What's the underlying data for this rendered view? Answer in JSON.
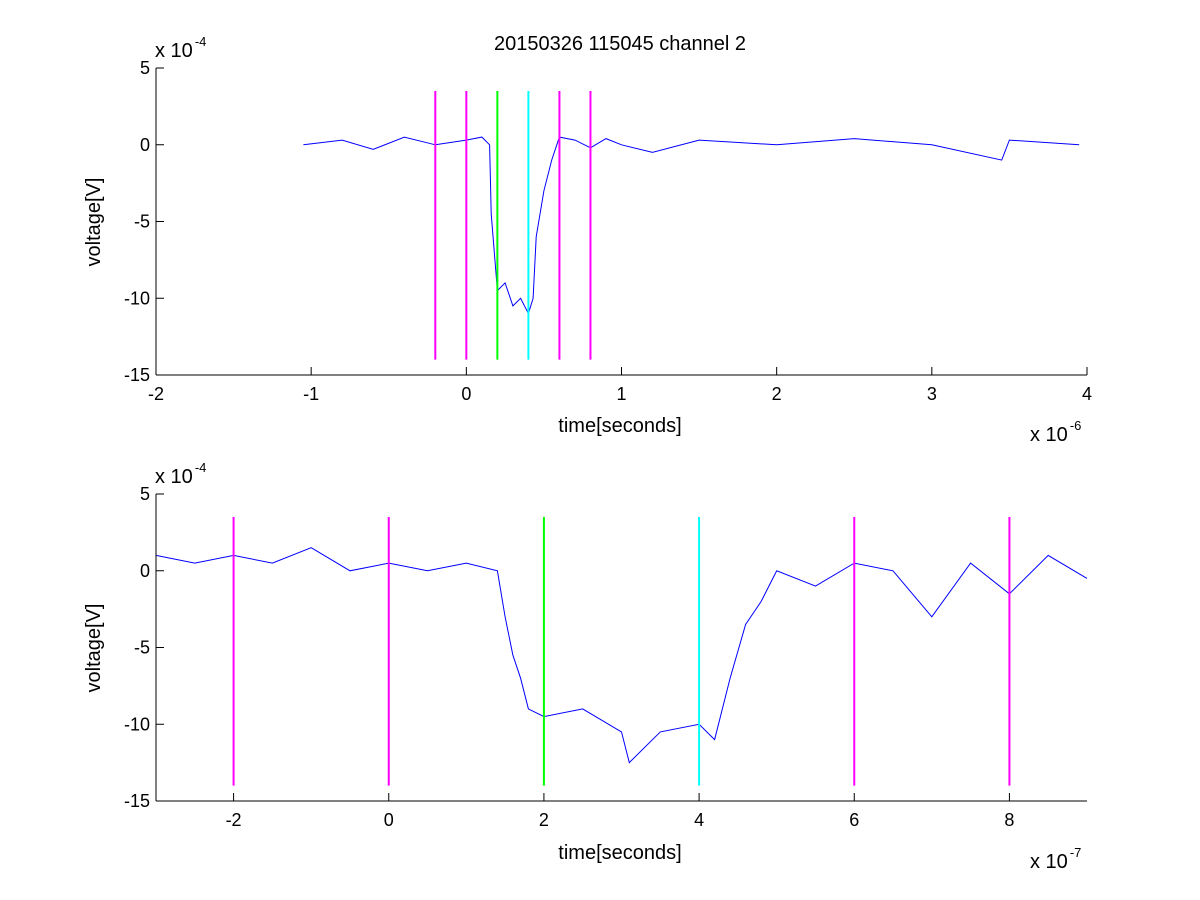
{
  "chart_data": [
    {
      "type": "line",
      "title": "20150326 115045 channel 2",
      "xlabel": "time[seconds]",
      "ylabel": "voltage[V]",
      "x_multiplier": {
        "base": "x 10",
        "exp": "-6"
      },
      "y_multiplier": {
        "base": "x 10",
        "exp": "-4"
      },
      "xlim": [
        -2,
        4
      ],
      "ylim": [
        -15,
        5
      ],
      "x_ticks": [
        "-2",
        "-1",
        "0",
        "1",
        "2",
        "3",
        "4"
      ],
      "y_ticks": [
        "5",
        "0",
        "-5",
        "-10",
        "-15"
      ],
      "grid": false,
      "series": [
        {
          "color": "#0000ff",
          "x": [
            -1.05,
            -0.8,
            -0.6,
            -0.4,
            -0.2,
            0.0,
            0.1,
            0.15,
            0.16,
            0.2,
            0.25,
            0.3,
            0.35,
            0.4,
            0.43,
            0.45,
            0.5,
            0.55,
            0.6,
            0.7,
            0.8,
            0.9,
            1.0,
            1.2,
            1.5,
            2.0,
            2.5,
            3.0,
            3.45,
            3.5,
            3.95
          ],
          "y": [
            0.0,
            0.3,
            -0.3,
            0.5,
            0.0,
            0.3,
            0.5,
            0.0,
            -4.5,
            -9.5,
            -9.0,
            -10.5,
            -10.0,
            -11.0,
            -10.0,
            -6.0,
            -3.0,
            -1.0,
            0.5,
            0.3,
            -0.2,
            0.4,
            0.0,
            -0.5,
            0.3,
            0.0,
            0.4,
            0.0,
            -1.0,
            0.3,
            0.0
          ]
        }
      ],
      "vlines": [
        {
          "x": -0.2,
          "color": "#ff00ff"
        },
        {
          "x": 0.0,
          "color": "#ff00ff"
        },
        {
          "x": 0.2,
          "color": "#00ff00"
        },
        {
          "x": 0.4,
          "color": "#00ffff"
        },
        {
          "x": 0.6,
          "color": "#ff00ff"
        },
        {
          "x": 0.8,
          "color": "#ff00ff"
        }
      ],
      "vline_range": [
        -14,
        3.5
      ]
    },
    {
      "type": "line",
      "xlabel": "time[seconds]",
      "ylabel": "voltage[V]",
      "x_multiplier": {
        "base": "x 10",
        "exp": "-7"
      },
      "y_multiplier": {
        "base": "x 10",
        "exp": "-4"
      },
      "xlim": [
        -3,
        9
      ],
      "ylim": [
        -15,
        5
      ],
      "x_ticks": [
        "-2",
        "0",
        "2",
        "4",
        "6",
        "8"
      ],
      "y_ticks": [
        "5",
        "0",
        "-5",
        "-10",
        "-15"
      ],
      "grid": false,
      "series": [
        {
          "color": "#0000ff",
          "x": [
            -3.0,
            -2.5,
            -2.0,
            -1.5,
            -1.0,
            -0.5,
            0.0,
            0.5,
            1.0,
            1.4,
            1.5,
            1.6,
            1.7,
            1.8,
            2.0,
            2.5,
            3.0,
            3.1,
            3.5,
            4.0,
            4.2,
            4.4,
            4.6,
            4.8,
            5.0,
            5.5,
            6.0,
            6.5,
            7.0,
            7.5,
            8.0,
            8.5,
            9.0
          ],
          "y": [
            1.0,
            0.5,
            1.0,
            0.5,
            1.5,
            0.0,
            0.5,
            0.0,
            0.5,
            0.0,
            -3.0,
            -5.5,
            -7.0,
            -9.0,
            -9.5,
            -9.0,
            -10.5,
            -12.5,
            -10.5,
            -10.0,
            -11.0,
            -7.0,
            -3.5,
            -2.0,
            0.0,
            -1.0,
            0.5,
            0.0,
            -3.0,
            0.5,
            -1.5,
            1.0,
            -0.5
          ]
        }
      ],
      "vlines": [
        {
          "x": -2,
          "color": "#ff00ff"
        },
        {
          "x": 0,
          "color": "#ff00ff"
        },
        {
          "x": 2,
          "color": "#00ff00"
        },
        {
          "x": 4,
          "color": "#00ffff"
        },
        {
          "x": 6,
          "color": "#ff00ff"
        },
        {
          "x": 8,
          "color": "#ff00ff"
        }
      ],
      "vline_range": [
        -14,
        3.5
      ]
    }
  ]
}
